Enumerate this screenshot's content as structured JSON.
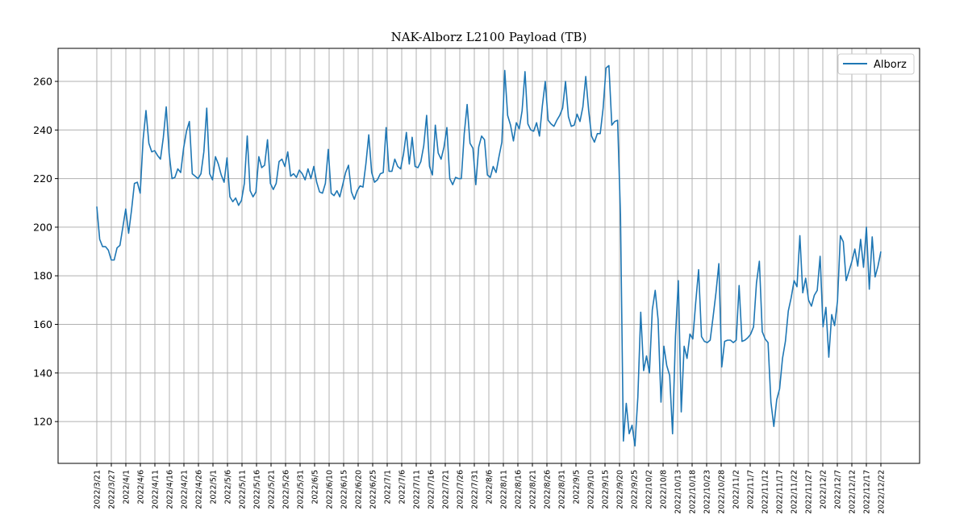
{
  "chart_data": {
    "type": "line",
    "title": "NAK-Alborz L2100 Payload (TB)",
    "xlabel": "",
    "ylabel": "",
    "ylim": [
      102.8,
      273.6
    ],
    "yticks": [
      120,
      140,
      160,
      180,
      200,
      220,
      240,
      260
    ],
    "grid": true,
    "legend_position": "upper right",
    "line_color": "#1f77b4",
    "tick_labels": [
      "2022/3/21",
      "2022/3/27",
      "2022/4/1",
      "2022/4/6",
      "2022/4/11",
      "2022/4/16",
      "2022/4/21",
      "2022/4/26",
      "2022/5/1",
      "2022/5/6",
      "2022/5/11",
      "2022/5/16",
      "2022/5/21",
      "2022/5/26",
      "2022/5/31",
      "2022/6/5",
      "2022/6/10",
      "2022/6/15",
      "2022/6/20",
      "2022/6/25",
      "2022/7/1",
      "2022/7/6",
      "2022/7/11",
      "2022/7/16",
      "2022/7/21",
      "2022/7/26",
      "2022/7/31",
      "2022/8/6",
      "2022/8/11",
      "2022/8/16",
      "2022/8/21",
      "2022/8/26",
      "2022/8/31",
      "2022/9/5",
      "2022/9/10",
      "2022/9/15",
      "2022/9/20",
      "2022/9/25",
      "2022/10/2",
      "2022/10/8",
      "2022/10/13",
      "2022/10/18",
      "2022/10/23",
      "2022/10/28",
      "2022/11/2",
      "2022/11/7",
      "2022/11/12",
      "2022/11/17",
      "2022/11/22",
      "2022/11/27",
      "2022/12/2",
      "2022/12/7",
      "2022/12/12",
      "2022/12/17",
      "2022/12/22"
    ],
    "series": [
      {
        "name": "Alborz",
        "values": [
          208.5,
          195,
          192,
          192,
          190.5,
          186.5,
          186.5,
          191.5,
          192.5,
          200,
          207.5,
          197.5,
          207,
          218,
          218.5,
          214,
          236,
          248,
          234.5,
          231,
          231.5,
          229.5,
          228,
          237,
          249.5,
          230.5,
          220,
          220.5,
          224,
          222.5,
          232.5,
          239.5,
          243.5,
          222,
          221,
          220,
          222,
          231,
          249,
          222,
          219.5,
          229,
          226,
          221.5,
          218.5,
          228.5,
          212.5,
          210.5,
          212,
          209,
          211,
          218,
          237.5,
          215,
          212.5,
          214.5,
          229,
          224.5,
          225.5,
          236,
          218,
          215.5,
          218,
          227,
          228,
          225,
          231,
          221,
          222,
          220.5,
          223.5,
          222,
          219.5,
          224,
          220,
          225,
          218.5,
          214.5,
          214,
          218,
          232,
          214,
          213,
          215,
          212.5,
          217.5,
          222.5,
          225.5,
          214.5,
          211.5,
          215,
          217,
          216.5,
          226,
          238,
          222.5,
          218.5,
          219.5,
          222,
          222.5,
          241,
          223,
          223,
          228,
          225,
          224,
          230,
          239,
          226,
          237,
          225,
          224.5,
          227,
          233.5,
          246,
          225,
          221.5,
          242,
          230.5,
          228,
          233,
          241,
          220,
          217.5,
          220.5,
          220,
          220,
          238.5,
          250.5,
          234.5,
          232.5,
          217.5,
          233,
          237.5,
          236,
          221.5,
          220.5,
          225,
          222.5,
          229,
          235,
          264.5,
          246,
          242,
          235.5,
          243,
          240.5,
          248,
          264,
          242.5,
          240,
          239.5,
          243,
          237.5,
          250,
          260,
          244,
          242.5,
          241.5,
          244,
          246,
          249,
          260,
          245.5,
          241.5,
          242,
          246.5,
          243.5,
          249.5,
          262,
          248,
          237.5,
          235,
          238.5,
          238.5,
          249,
          265.5,
          266.5,
          242,
          243.5,
          244,
          205,
          112,
          127.5,
          115,
          118.5,
          110,
          130,
          165,
          141,
          147,
          140,
          166,
          174,
          162,
          128,
          151,
          143,
          139,
          115,
          155,
          178,
          124,
          151,
          146,
          156,
          154,
          169,
          182.5,
          155,
          153,
          152.5,
          153.5,
          163,
          173,
          185,
          142.5,
          153,
          153.5,
          153.5,
          152.5,
          153.5,
          176,
          153,
          153.5,
          154.5,
          156,
          159,
          177,
          186,
          157,
          154,
          152.5,
          128,
          118,
          129,
          133.5,
          146,
          153,
          165.5,
          171,
          178,
          175.5,
          196.5,
          173,
          179,
          170,
          167.5,
          172,
          174,
          188,
          159,
          167,
          146.5,
          164,
          159.5,
          169.5,
          196.5,
          194,
          178,
          182,
          186,
          191,
          184,
          195,
          183.5,
          200,
          174.5,
          196,
          179.5,
          184,
          190
        ]
      }
    ]
  }
}
